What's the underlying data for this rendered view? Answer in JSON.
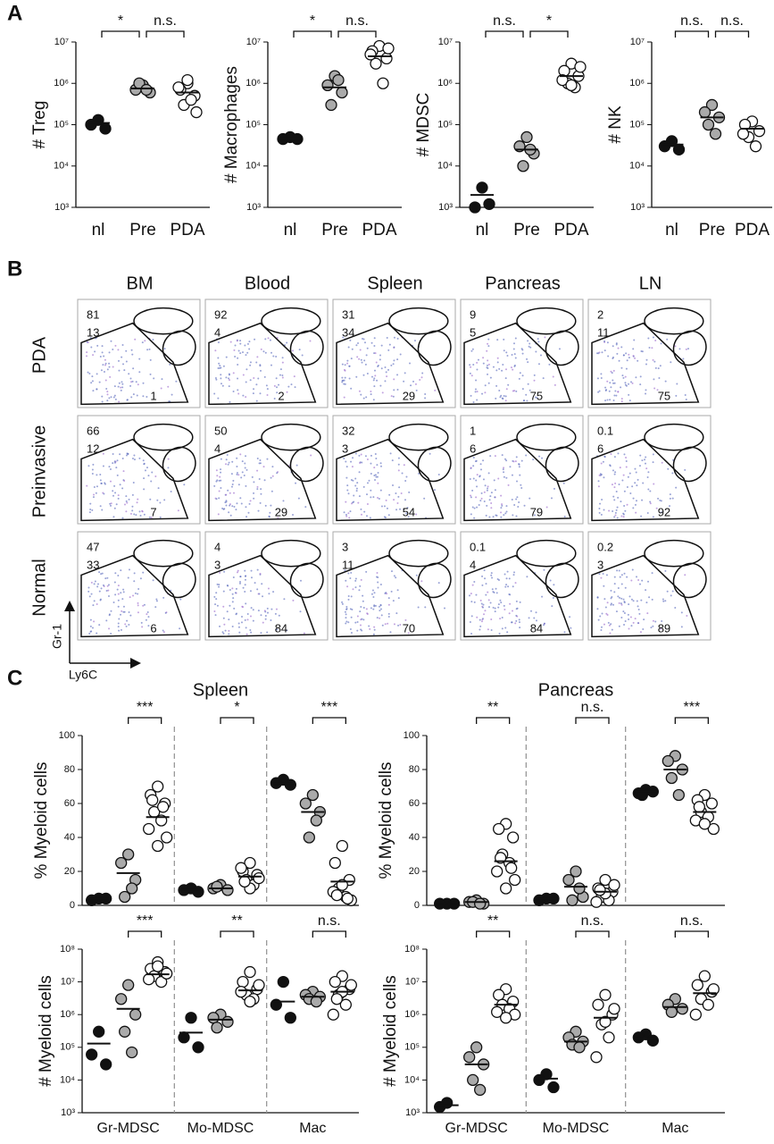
{
  "panel_labels": [
    "A",
    "B",
    "C"
  ],
  "chart_data": [
    {
      "type": "dot",
      "scale": "log",
      "ylabel": "# Treg",
      "ylim": [
        1000,
        10000000
      ],
      "yticks": [
        {
          "value": 1000,
          "label": "10³"
        },
        {
          "value": 10000,
          "label": "10⁴"
        },
        {
          "value": 100000,
          "label": "10⁵"
        },
        {
          "value": 1000000,
          "label": "10⁶"
        },
        {
          "value": 10000000,
          "label": "10⁷"
        }
      ],
      "categories": [
        "nl",
        "Pre",
        "PDA"
      ],
      "groups": [
        {
          "fill": "#111111",
          "points": [
            130000,
            100000,
            80000
          ],
          "mean": 110000
        },
        {
          "fill": "#aaaaaa",
          "points": [
            900000,
            700000,
            600000,
            1000000,
            700000
          ],
          "mean": 750000
        },
        {
          "fill": "#ffffff",
          "points": [
            1000000,
            700000,
            500000,
            300000,
            400000,
            800000,
            200000,
            1200000
          ],
          "mean": 600000
        }
      ],
      "significance": [
        "*",
        "n.s."
      ]
    },
    {
      "type": "dot",
      "scale": "log",
      "ylabel": "# Macrophages",
      "ylim": [
        1000,
        10000000
      ],
      "yticks": [
        {
          "value": 1000,
          "label": "10³"
        },
        {
          "value": 10000,
          "label": "10⁴"
        },
        {
          "value": 100000,
          "label": "10⁵"
        },
        {
          "value": 1000000,
          "label": "10⁶"
        },
        {
          "value": 10000000,
          "label": "10⁷"
        }
      ],
      "categories": [
        "nl",
        "Pre",
        "PDA"
      ],
      "groups": [
        {
          "fill": "#111111",
          "points": [
            50000,
            45000,
            45000
          ],
          "mean": 48000
        },
        {
          "fill": "#aaaaaa",
          "points": [
            1500000,
            900000,
            600000,
            300000,
            1200000
          ],
          "mean": 800000
        },
        {
          "fill": "#ffffff",
          "points": [
            8000000,
            6000000,
            4000000,
            3000000,
            1000000,
            5000000,
            7000000
          ],
          "mean": 4500000
        }
      ],
      "significance": [
        "*",
        "n.s."
      ]
    },
    {
      "type": "dot",
      "scale": "log",
      "ylabel": "# MDSC",
      "ylim": [
        1000,
        10000000
      ],
      "yticks": [
        {
          "value": 1000,
          "label": "10³"
        },
        {
          "value": 10000,
          "label": "10⁴"
        },
        {
          "value": 100000,
          "label": "10⁵"
        },
        {
          "value": 1000000,
          "label": "10⁶"
        },
        {
          "value": 10000000,
          "label": "10⁷"
        }
      ],
      "categories": [
        "nl",
        "Pre",
        "PDA"
      ],
      "groups": [
        {
          "fill": "#111111",
          "points": [
            3000,
            1000,
            1200
          ],
          "mean": 2000
        },
        {
          "fill": "#aaaaaa",
          "points": [
            50000,
            30000,
            20000,
            10000,
            25000
          ],
          "mean": 25000
        },
        {
          "fill": "#ffffff",
          "points": [
            3000000,
            2000000,
            1500000,
            1000000,
            800000,
            1200000,
            2500000,
            900000
          ],
          "mean": 1500000
        }
      ],
      "significance": [
        "n.s.",
        "*"
      ]
    },
    {
      "type": "dot",
      "scale": "log",
      "ylabel": "# NK",
      "ylim": [
        1000,
        10000000
      ],
      "yticks": [
        {
          "value": 1000,
          "label": "10³"
        },
        {
          "value": 10000,
          "label": "10⁴"
        },
        {
          "value": 100000,
          "label": "10⁵"
        },
        {
          "value": 1000000,
          "label": "10⁶"
        },
        {
          "value": 10000000,
          "label": "10⁷"
        }
      ],
      "categories": [
        "nl",
        "Pre",
        "PDA"
      ],
      "groups": [
        {
          "fill": "#111111",
          "points": [
            40000,
            30000,
            25000
          ],
          "mean": 33000
        },
        {
          "fill": "#aaaaaa",
          "points": [
            300000,
            200000,
            150000,
            100000,
            60000
          ],
          "mean": 150000
        },
        {
          "fill": "#ffffff",
          "points": [
            120000,
            100000,
            70000,
            50000,
            30000,
            60000
          ],
          "mean": 80000
        }
      ],
      "significance": [
        "n.s.",
        "n.s."
      ]
    },
    {
      "type": "cluster-dot",
      "scale": "linear",
      "title": "Spleen",
      "ylabel": "% Myeloid cells",
      "ylim": [
        0,
        100
      ],
      "yticks": [
        0,
        20,
        40,
        60,
        80,
        100
      ],
      "clusters": [
        {
          "sets": [
            {
              "fill": "#111111",
              "points": [
                4,
                3,
                4
              ],
              "mean": 4
            },
            {
              "fill": "#aaaaaa",
              "points": [
                30,
                25,
                15,
                5,
                10
              ],
              "mean": 19
            },
            {
              "fill": "#ffffff",
              "points": [
                70,
                65,
                60,
                55,
                50,
                45,
                40,
                35,
                62,
                58
              ],
              "mean": 52
            }
          ],
          "significance": "***"
        },
        {
          "sets": [
            {
              "fill": "#111111",
              "points": [
                10,
                9,
                8
              ],
              "mean": 9
            },
            {
              "fill": "#aaaaaa",
              "points": [
                12,
                10,
                9,
                11
              ],
              "mean": 10
            },
            {
              "fill": "#ffffff",
              "points": [
                25,
                20,
                18,
                15,
                12,
                22,
                16,
                10,
                14
              ],
              "mean": 17
            }
          ],
          "significance": "*"
        },
        {
          "sets": [
            {
              "fill": "#111111",
              "points": [
                74,
                72,
                71
              ],
              "mean": 72
            },
            {
              "fill": "#aaaaaa",
              "points": [
                65,
                60,
                55,
                40,
                50
              ],
              "mean": 55
            },
            {
              "fill": "#ffffff",
              "points": [
                35,
                25,
                15,
                10,
                5,
                8,
                3,
                12,
                6,
                4
              ],
              "mean": 14
            }
          ],
          "significance": "***"
        }
      ]
    },
    {
      "type": "cluster-dot",
      "scale": "linear",
      "title": "Pancreas",
      "ylabel": "% Myeloid cells",
      "ylim": [
        0,
        100
      ],
      "yticks": [
        0,
        20,
        40,
        60,
        80,
        100
      ],
      "clusters": [
        {
          "sets": [
            {
              "fill": "#111111",
              "points": [
                1,
                1,
                1
              ],
              "mean": 1
            },
            {
              "fill": "#aaaaaa",
              "points": [
                3,
                2,
                1,
                2,
                1
              ],
              "mean": 2
            },
            {
              "fill": "#ffffff",
              "points": [
                48,
                45,
                40,
                30,
                25,
                20,
                15,
                10,
                28,
                22
              ],
              "mean": 26
            }
          ],
          "significance": "**"
        },
        {
          "sets": [
            {
              "fill": "#111111",
              "points": [
                4,
                3,
                4
              ],
              "mean": 4
            },
            {
              "fill": "#aaaaaa",
              "points": [
                20,
                15,
                5,
                3,
                10
              ],
              "mean": 11
            },
            {
              "fill": "#ffffff",
              "points": [
                15,
                10,
                8,
                5,
                3,
                2,
                12,
                7,
                9
              ],
              "mean": 8
            }
          ],
          "significance": "n.s."
        },
        {
          "sets": [
            {
              "fill": "#111111",
              "points": [
                68,
                66,
                67,
                65
              ],
              "mean": 67
            },
            {
              "fill": "#aaaaaa",
              "points": [
                88,
                85,
                80,
                75,
                65
              ],
              "mean": 80
            },
            {
              "fill": "#ffffff",
              "points": [
                65,
                62,
                60,
                55,
                52,
                50,
                45,
                48,
                58
              ],
              "mean": 55
            }
          ],
          "significance": "***"
        }
      ]
    },
    {
      "type": "cluster-dot",
      "scale": "log",
      "ylabel": "# Myeloid cells",
      "ylim": [
        1000,
        100000000
      ],
      "yticks": [
        {
          "value": 1000,
          "label": "10³"
        },
        {
          "value": 10000,
          "label": "10⁴"
        },
        {
          "value": 100000,
          "label": "10⁵"
        },
        {
          "value": 1000000,
          "label": "10⁶"
        },
        {
          "value": 10000000,
          "label": "10⁷"
        },
        {
          "value": 100000000,
          "label": "10⁸"
        }
      ],
      "categories": [
        "Gr-MDSC",
        "Mo-MDSC",
        "Mac"
      ],
      "clusters": [
        {
          "sets": [
            {
              "fill": "#111111",
              "points": [
                300000,
                60000,
                30000
              ],
              "mean": 130000
            },
            {
              "fill": "#aaaaaa",
              "points": [
                8000000,
                3000000,
                1000000,
                300000,
                70000
              ],
              "mean": 1500000
            },
            {
              "fill": "#ffffff",
              "points": [
                40000000,
                25000000,
                20000000,
                15000000,
                10000000,
                12000000,
                18000000,
                30000000
              ],
              "mean": 17000000
            }
          ],
          "significance": "***"
        },
        {
          "sets": [
            {
              "fill": "#111111",
              "points": [
                800000,
                200000,
                100000
              ],
              "mean": 280000
            },
            {
              "fill": "#aaaaaa",
              "points": [
                1000000,
                800000,
                600000,
                400000
              ],
              "mean": 700000
            },
            {
              "fill": "#ffffff",
              "points": [
                20000000,
                10000000,
                6000000,
                4000000,
                3000000,
                5000000,
                8000000,
                2500000
              ],
              "mean": 5500000
            }
          ],
          "significance": "**"
        },
        {
          "sets": [
            {
              "fill": "#111111",
              "points": [
                10000000,
                2000000,
                800000
              ],
              "mean": 2500000
            },
            {
              "fill": "#aaaaaa",
              "points": [
                5000000,
                4000000,
                3500000,
                3000000,
                2500000
              ],
              "mean": 3500000
            },
            {
              "fill": "#ffffff",
              "points": [
                15000000,
                10000000,
                6000000,
                4000000,
                2000000,
                1000000,
                8000000,
                5000000,
                3000000
              ],
              "mean": 5000000
            }
          ],
          "significance": "n.s."
        }
      ]
    },
    {
      "type": "cluster-dot",
      "scale": "log",
      "ylabel": "# Myeloid cells",
      "ylim": [
        1000,
        100000000
      ],
      "yticks": [
        {
          "value": 1000,
          "label": "10³"
        },
        {
          "value": 10000,
          "label": "10⁴"
        },
        {
          "value": 100000,
          "label": "10⁵"
        },
        {
          "value": 1000000,
          "label": "10⁶"
        },
        {
          "value": 10000000,
          "label": "10⁷"
        },
        {
          "value": 100000000,
          "label": "10⁸"
        }
      ],
      "categories": [
        "Gr-MDSC",
        "Mo-MDSC",
        "Mac"
      ],
      "clusters": [
        {
          "sets": [
            {
              "fill": "#111111",
              "points": [
                2000,
                1500
              ],
              "mean": 1700
            },
            {
              "fill": "#aaaaaa",
              "points": [
                100000,
                50000,
                30000,
                10000,
                5000
              ],
              "mean": 30000
            },
            {
              "fill": "#ffffff",
              "points": [
                6000000,
                4000000,
                2500000,
                2000000,
                1500000,
                1200000,
                1000000,
                800000
              ],
              "mean": 2000000
            }
          ],
          "significance": "**"
        },
        {
          "sets": [
            {
              "fill": "#111111",
              "points": [
                15000,
                10000,
                6000
              ],
              "mean": 11000
            },
            {
              "fill": "#aaaaaa",
              "points": [
                300000,
                200000,
                150000,
                120000,
                100000
              ],
              "mean": 150000
            },
            {
              "fill": "#ffffff",
              "points": [
                4000000,
                2000000,
                1000000,
                500000,
                200000,
                50000,
                1500000,
                600000
              ],
              "mean": 800000
            }
          ],
          "significance": "n.s."
        },
        {
          "sets": [
            {
              "fill": "#111111",
              "points": [
                250000,
                200000,
                160000
              ],
              "mean": 190000
            },
            {
              "fill": "#aaaaaa",
              "points": [
                3000000,
                2000000,
                1500000,
                1200000
              ],
              "mean": 1700000
            },
            {
              "fill": "#ffffff",
              "points": [
                15000000,
                8000000,
                5000000,
                3000000,
                2000000,
                1000000,
                6000000
              ],
              "mean": 4500000
            }
          ],
          "significance": "n.s."
        }
      ]
    }
  ],
  "flow": {
    "columns": [
      "BM",
      "Blood",
      "Spleen",
      "Pancreas",
      "LN"
    ],
    "rows": [
      {
        "label": "PDA",
        "cells": [
          [
            81,
            13,
            1
          ],
          [
            92,
            4,
            2
          ],
          [
            31,
            34,
            29
          ],
          [
            9,
            5,
            75
          ],
          [
            2,
            11,
            75
          ]
        ]
      },
      {
        "label": "Preinvasive",
        "cells": [
          [
            66,
            12,
            7
          ],
          [
            50,
            4,
            29
          ],
          [
            32,
            3,
            54
          ],
          [
            1,
            6,
            79
          ],
          [
            0.1,
            6,
            92
          ]
        ]
      },
      {
        "label": "Normal",
        "cells": [
          [
            47,
            33,
            6
          ],
          [
            4,
            3,
            84
          ],
          [
            3,
            11,
            70
          ],
          [
            0.1,
            4,
            84
          ],
          [
            0.2,
            3,
            89
          ]
        ]
      }
    ],
    "y_axis": "Gr-1",
    "x_axis": "Ly6C"
  }
}
